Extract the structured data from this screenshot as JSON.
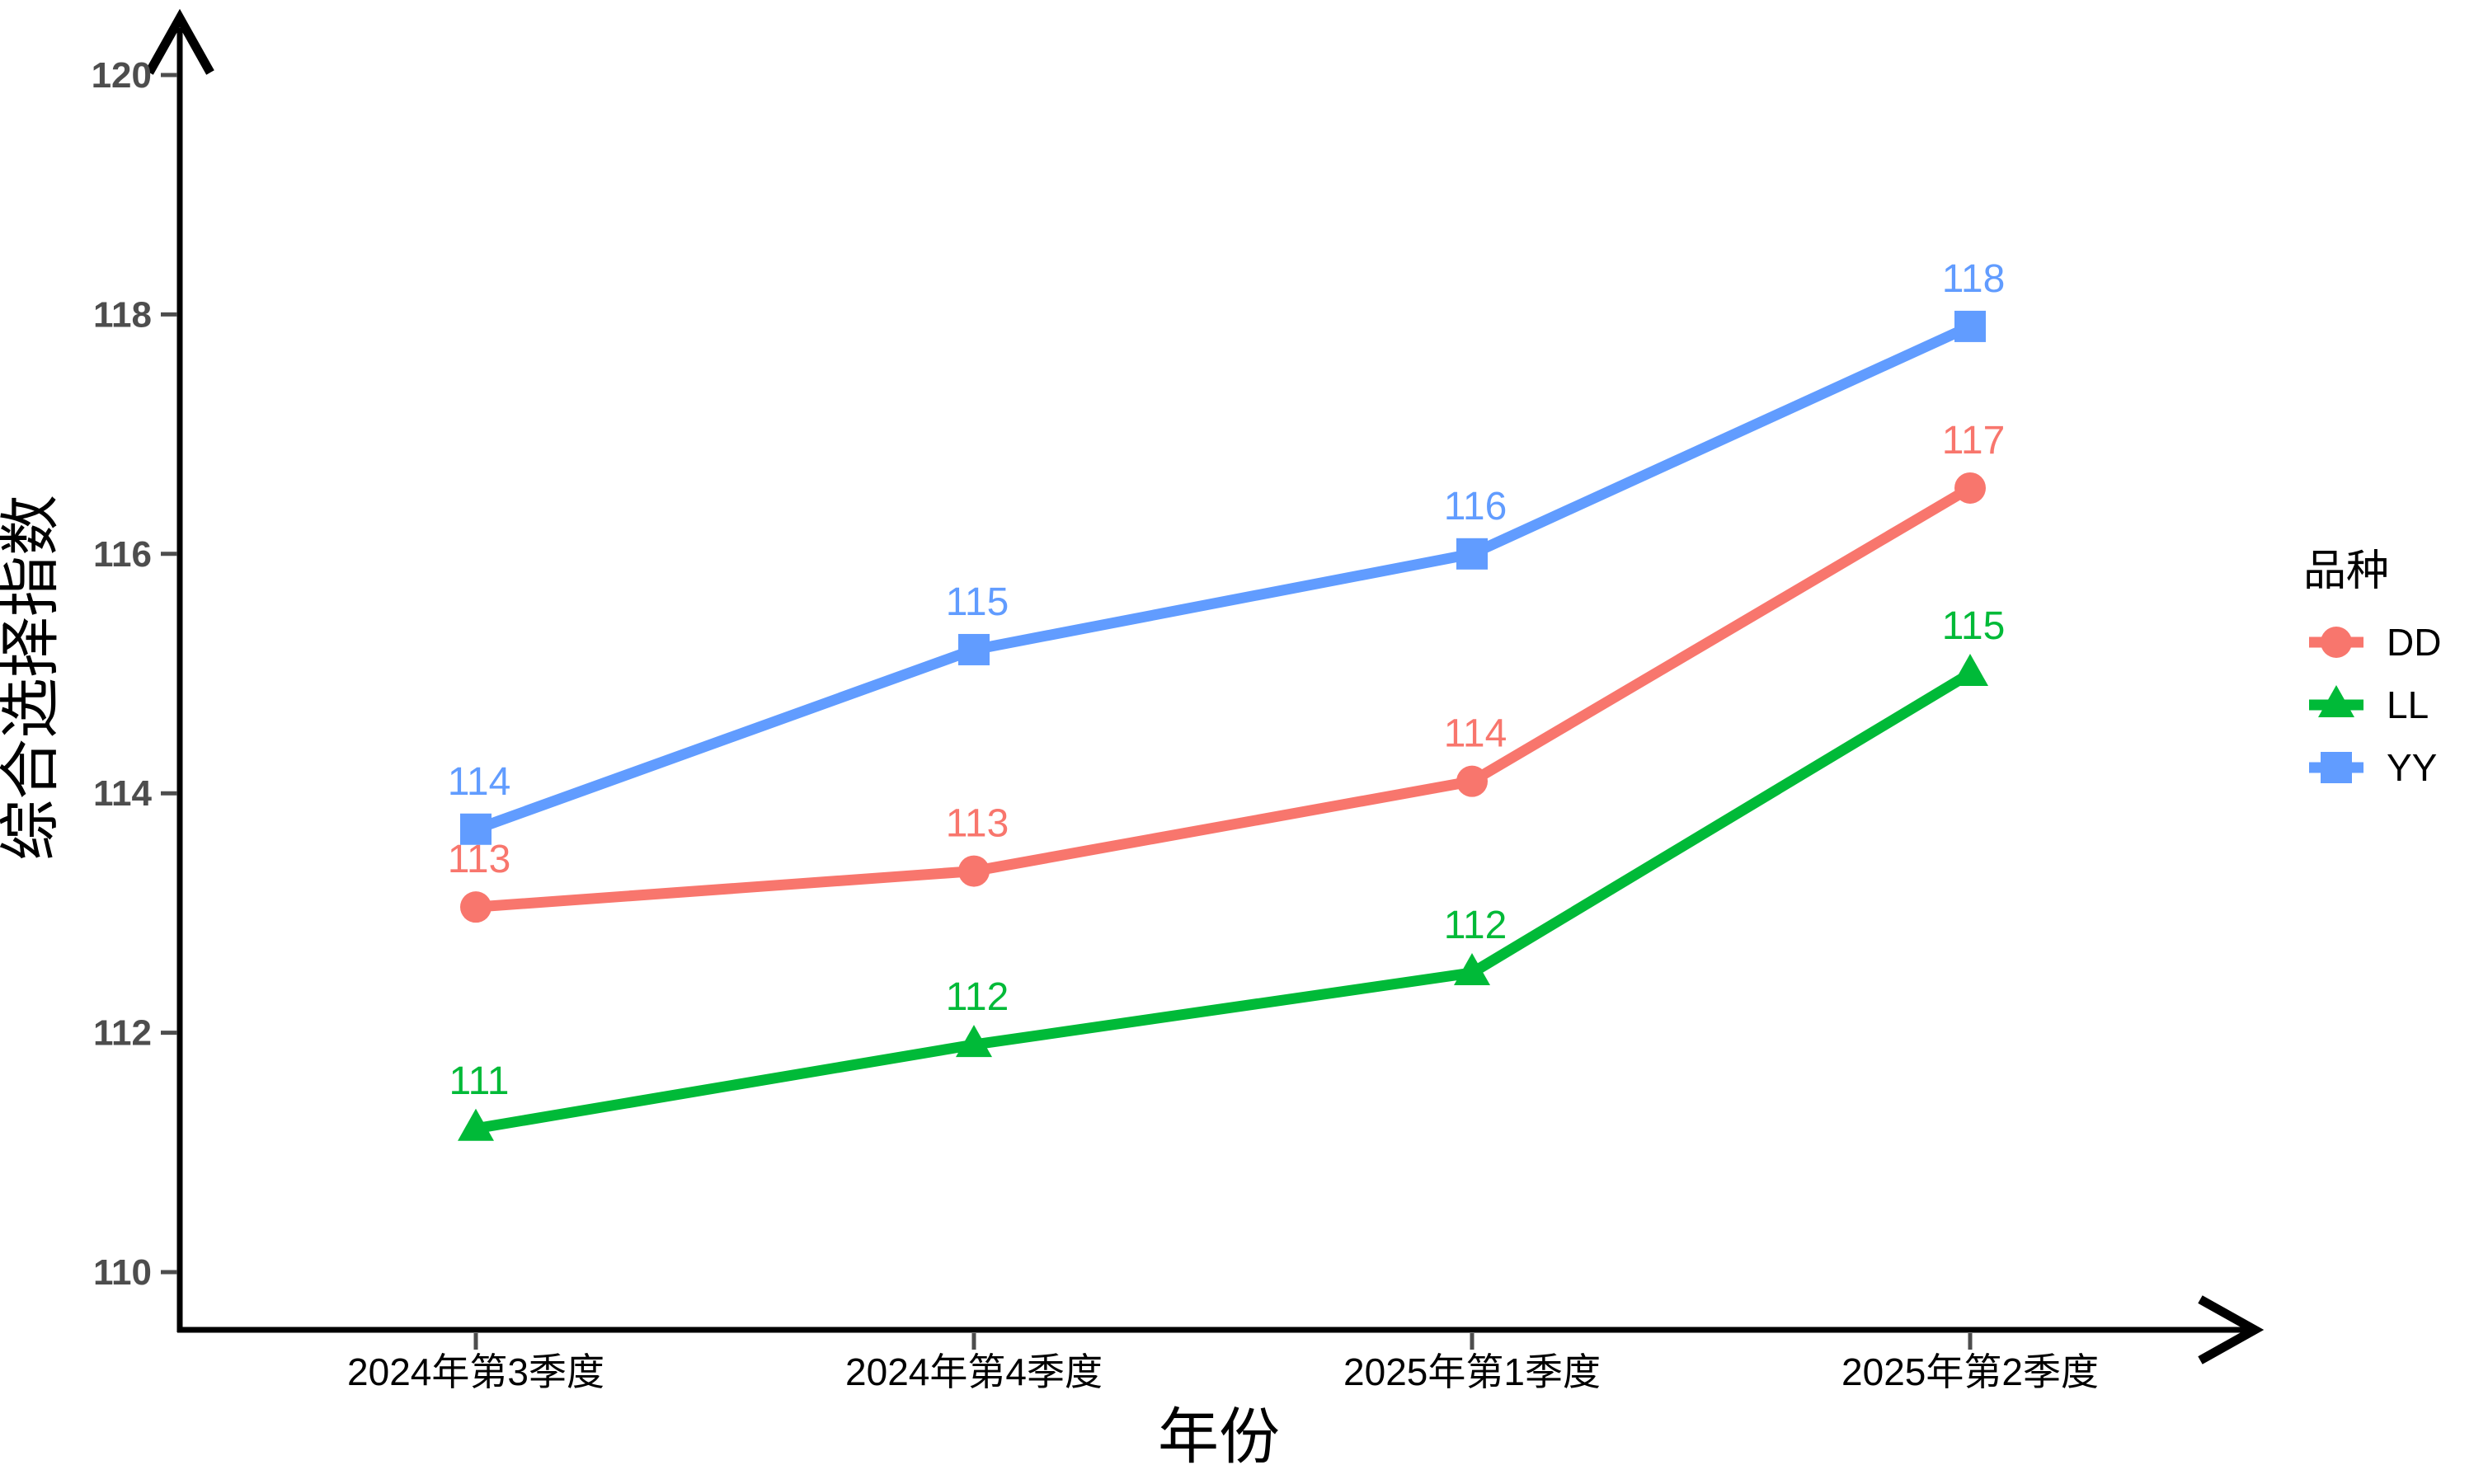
{
  "chart_data": {
    "type": "line",
    "title": "",
    "xlabel": "年份",
    "ylabel": "综合选择指数",
    "categories": [
      "2024年第3季度",
      "2024年第4季度",
      "2025年第1季度",
      "2025年第2季度"
    ],
    "series": [
      {
        "name": "DD",
        "color": "#F8766D",
        "marker": "circle",
        "values": [
          113.05,
          113.35,
          114.1,
          116.55
        ],
        "point_labels": [
          "113",
          "113",
          "114",
          "117"
        ]
      },
      {
        "name": "LL",
        "color": "#00BA38",
        "marker": "triangle",
        "values": [
          111.2,
          111.9,
          112.5,
          115.0
        ],
        "point_labels": [
          "111",
          "112",
          "112",
          "115"
        ]
      },
      {
        "name": "YY",
        "color": "#619CFF",
        "marker": "square",
        "values": [
          113.7,
          115.2,
          116.0,
          117.9
        ],
        "point_labels": [
          "114",
          "115",
          "116",
          "118"
        ]
      }
    ],
    "y_ticks": [
      110,
      112,
      114,
      116,
      118,
      120
    ],
    "ylim": [
      109.5,
      120.8
    ],
    "legend_title": "品种",
    "legend_position": "right",
    "grid": false,
    "axis_arrows": true
  },
  "styles": {
    "axis_color": "#000000",
    "tick_color": "#4d4d4d",
    "y_tick_label_color": "#4d4d4d",
    "x_tick_label_color": "#000000",
    "axis_title_color": "#000000",
    "legend_text_color": "#000000",
    "background": "#ffffff"
  }
}
